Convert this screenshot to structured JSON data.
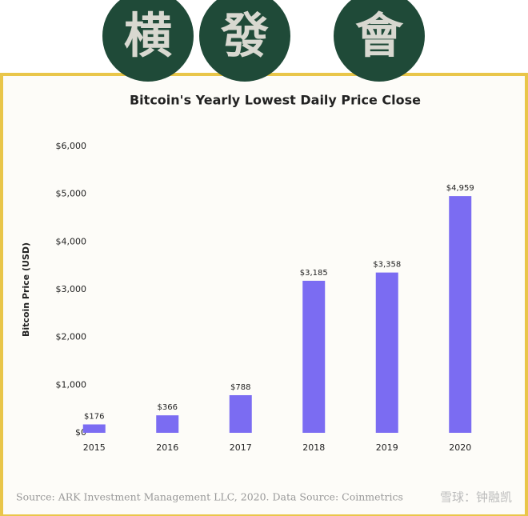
{
  "banner": [
    "横",
    "發",
    "會"
  ],
  "chart_data": {
    "type": "bar",
    "title": "Bitcoin's Yearly Lowest Daily Price Close",
    "y_label": "Bitcoin Price (USD)",
    "categories": [
      "2015",
      "2016",
      "2017",
      "2018",
      "2019",
      "2020"
    ],
    "values": [
      176,
      366,
      788,
      3185,
      3358,
      4959
    ],
    "value_labels": [
      "$176",
      "$366",
      "$788",
      "$3,185",
      "$3,358",
      "$4,959"
    ],
    "color": "#7b6cf2",
    "ylim": [
      0,
      6000
    ],
    "yticks": [
      {
        "value": 0,
        "label": "$0"
      },
      {
        "value": 1000,
        "label": "$1,000"
      },
      {
        "value": 2000,
        "label": "$2,000"
      },
      {
        "value": 3000,
        "label": "$3,000"
      },
      {
        "value": 4000,
        "label": "$4,000"
      },
      {
        "value": 5000,
        "label": "$5,000"
      },
      {
        "value": 6000,
        "label": "$6,000"
      }
    ],
    "grid": false
  },
  "source": "Source: ARK Investment Management LLC, 2020. Data Source: Coinmetrics",
  "watermark": "雪球：钟融凯"
}
